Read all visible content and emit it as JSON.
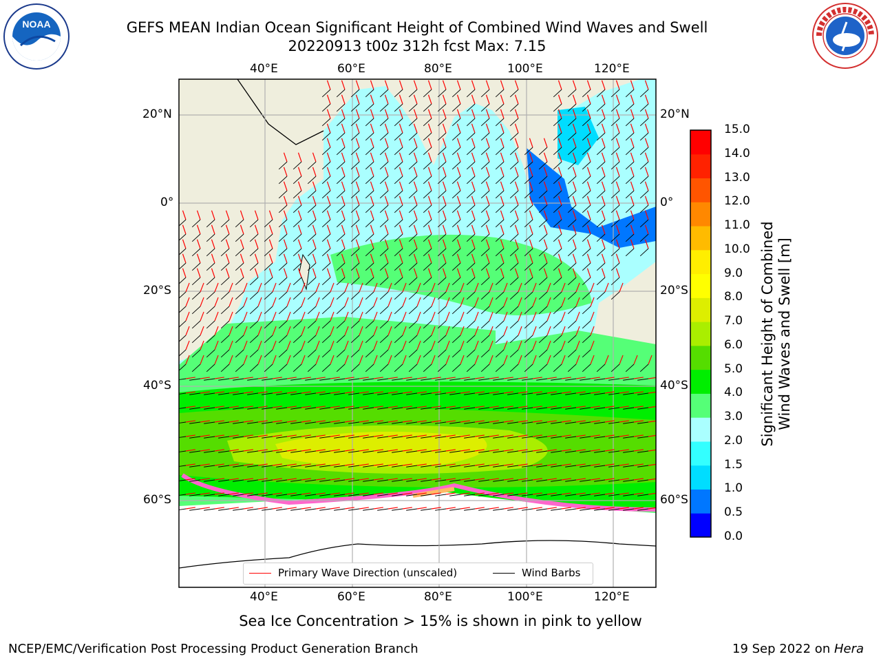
{
  "title": {
    "line1": "GEFS MEAN Indian Ocean Significant Height of Combined Wind Waves and Swell",
    "line2": "20220913 t00z 312h fcst   Max: 7.15"
  },
  "map": {
    "lon_ticks": [
      "40°E",
      "60°E",
      "80°E",
      "100°E",
      "120°E"
    ],
    "lat_ticks_left": [
      "20°N",
      "0°",
      "20°S",
      "40°S",
      "60°S"
    ],
    "lat_ticks_right": [
      "20°N",
      "0°",
      "20°S",
      "40°S",
      "60°S"
    ],
    "colors": {
      "land": "#efeedd",
      "grid": "#b0b0b0",
      "wave_arrow": "#ff0000",
      "wind_barb": "#000000",
      "ice": "#ff66cc"
    }
  },
  "colorbar": {
    "label_line1": "Significant Height of Combined",
    "label_line2": "Wind Waves and Swell [m]",
    "ticks": [
      "0.0",
      "0.5",
      "1.0",
      "1.5",
      "2.0",
      "3.0",
      "4.0",
      "5.0",
      "6.0",
      "7.0",
      "8.0",
      "9.0",
      "10.0",
      "11.0",
      "12.0",
      "13.0",
      "14.0",
      "15.0"
    ],
    "colors": [
      "#0000ff",
      "#0077ff",
      "#00ddff",
      "#33ffff",
      "#aaffff",
      "#55ff77",
      "#00ee00",
      "#55dd00",
      "#aaee00",
      "#ddee00",
      "#ffff00",
      "#ffee00",
      "#ffbb00",
      "#ff8800",
      "#ff5500",
      "#ff2200",
      "#ff0000"
    ]
  },
  "legend": {
    "wave_label": "Primary Wave Direction (unscaled)",
    "wind_label": "Wind Barbs"
  },
  "sea_ice_note": "Sea Ice Concentration > 15% is shown in pink to yellow",
  "footer": {
    "left": "NCEP/EMC/Verification Post Processing Product Generation Branch",
    "date": "19 Sep 2022 on ",
    "host": "Hera"
  },
  "logos": {
    "noaa": "NOAA",
    "nws_ring": "NATIONAL WEATHER SERVICE"
  }
}
